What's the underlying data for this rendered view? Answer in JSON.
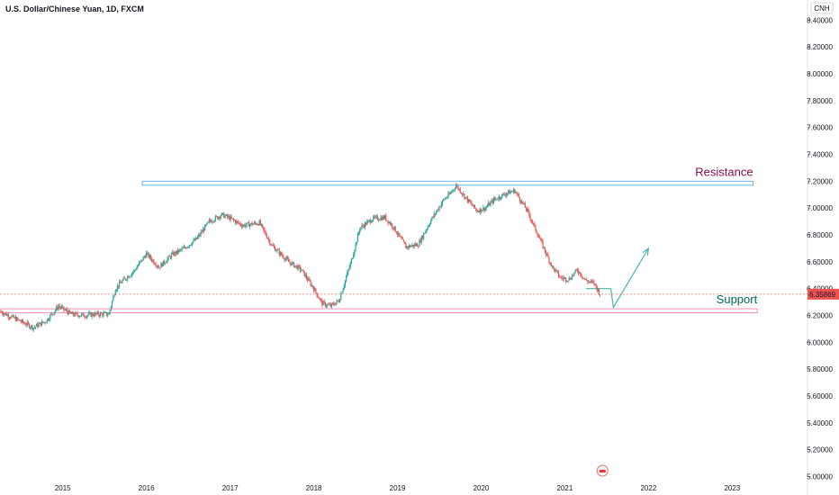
{
  "chart_data": {
    "type": "candlestick",
    "title": "U.S. Dollar/Chinese Yuan, 1D, FXCM",
    "currency_label": "CNH",
    "last_price_label": "6.35869",
    "last_price": 6.35869,
    "ylim": [
      4.95,
      8.55
    ],
    "y_ticks": [
      "8.40000",
      "8.20000",
      "8.00000",
      "7.80000",
      "7.60000",
      "7.40000",
      "7.20000",
      "7.00000",
      "6.80000",
      "6.60000",
      "6.40000",
      "6.20000",
      "6.00000",
      "5.80000",
      "5.60000",
      "5.40000",
      "5.20000",
      "5.00000"
    ],
    "x_ticks": [
      "2015",
      "2016",
      "2017",
      "2018",
      "2019",
      "2020",
      "2021",
      "2022",
      "2023"
    ],
    "x_range": [
      2014.25,
      2023.9
    ],
    "grid": false,
    "colors": {
      "up": "#26a69a",
      "down": "#ef5350",
      "resistance_box": "#64b5f6",
      "support_box": "#f48fb1",
      "projection": "#4db6ac",
      "resistance_text": "#880e4f",
      "support_text": "#00695c",
      "price_tag": "#ef5350"
    },
    "series": [
      {
        "x": [
          2014.25,
          2014.45,
          2014.65,
          2014.8,
          2014.95,
          2015.1,
          2015.25,
          2015.4,
          2015.55,
          2015.63,
          2015.7,
          2015.85,
          2016.0,
          2016.15,
          2016.3,
          2016.45,
          2016.6,
          2016.75,
          2016.9,
          2016.98,
          2017.15,
          2017.35,
          2017.5,
          2017.7,
          2017.85,
          2018.0,
          2018.1,
          2018.2,
          2018.3,
          2018.45,
          2018.55,
          2018.7,
          2018.85,
          2018.95,
          2019.1,
          2019.25,
          2019.4,
          2019.55,
          2019.62,
          2019.7,
          2019.85,
          2019.95,
          2020.05,
          2020.15,
          2020.3,
          2020.4,
          2020.55,
          2020.7,
          2020.85,
          2020.95,
          2021.05,
          2021.15,
          2021.25,
          2021.35,
          2021.42
        ],
        "y": [
          6.23,
          6.17,
          6.11,
          6.16,
          6.27,
          6.21,
          6.2,
          6.21,
          6.21,
          6.4,
          6.45,
          6.53,
          6.66,
          6.56,
          6.65,
          6.7,
          6.77,
          6.9,
          6.95,
          6.93,
          6.87,
          6.89,
          6.72,
          6.6,
          6.54,
          6.4,
          6.29,
          6.27,
          6.31,
          6.61,
          6.85,
          6.92,
          6.93,
          6.86,
          6.71,
          6.73,
          6.91,
          7.06,
          7.1,
          7.17,
          7.05,
          6.98,
          7.0,
          7.06,
          7.11,
          7.13,
          6.98,
          6.77,
          6.56,
          6.48,
          6.47,
          6.54,
          6.46,
          6.44,
          6.36
        ]
      }
    ],
    "annotations": [
      {
        "type": "resistance_box",
        "label": "Resistance",
        "x_range": [
          2015.95,
          2023.25
        ],
        "y_range": [
          7.17,
          7.2
        ]
      },
      {
        "type": "support_box",
        "label": "Support",
        "x_range": [
          2014.25,
          2023.3
        ],
        "y_range": [
          6.22,
          6.25
        ]
      },
      {
        "type": "projection",
        "points": [
          [
            2021.25,
            6.4
          ],
          [
            2021.55,
            6.4
          ],
          [
            2021.58,
            6.26
          ],
          [
            2022.0,
            6.7
          ]
        ]
      }
    ]
  }
}
